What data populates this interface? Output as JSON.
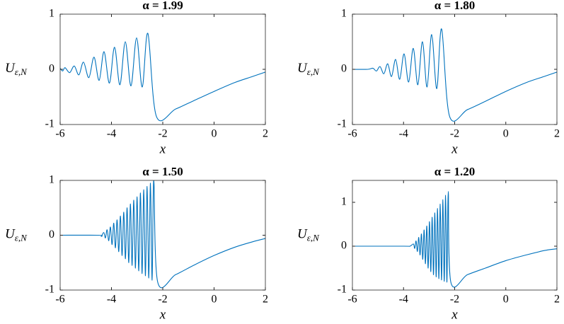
{
  "chart_data": [
    {
      "type": "line",
      "title": "α = 1.99",
      "xlabel": "x",
      "ylabel": "U",
      "ylabel_sub": "ε,N",
      "color": "#0072bd",
      "xlim": [
        -6,
        2
      ],
      "ylim": [
        -1,
        1
      ],
      "xticks": [
        -6,
        -4,
        -2,
        0,
        2
      ],
      "yticks": [
        -1,
        0,
        1
      ],
      "x": [
        -6,
        -5.9,
        -5.81,
        -5.63,
        -5.45,
        -5.27,
        -5.09,
        -4.88,
        -4.68,
        -4.48,
        -4.29,
        -4.08,
        -3.88,
        -3.67,
        -3.46,
        -3.24,
        -3.02,
        -2.8,
        -2.58,
        -2.25,
        -1.5,
        -0.8,
        0,
        0.8,
        1.5,
        2
      ],
      "values": [
        0.02,
        -0.03,
        0.03,
        -0.06,
        0.06,
        -0.1,
        0.13,
        -0.15,
        0.22,
        -0.2,
        0.32,
        -0.25,
        0.4,
        -0.28,
        0.5,
        -0.3,
        0.57,
        -0.32,
        0.65,
        -0.85,
        -0.72,
        -0.57,
        -0.4,
        -0.24,
        -0.13,
        -0.05
      ]
    },
    {
      "type": "line",
      "title": "α = 1.80",
      "xlabel": "x",
      "ylabel": "U",
      "ylabel_sub": "ε,N",
      "color": "#0072bd",
      "xlim": [
        -6,
        2
      ],
      "ylim": [
        -1,
        1
      ],
      "xticks": [
        -6,
        -4,
        -2,
        0,
        2
      ],
      "yticks": [
        -1,
        0,
        1
      ],
      "x": [
        -6,
        -5.4,
        -5.2,
        -5.06,
        -4.92,
        -4.77,
        -4.62,
        -4.47,
        -4.31,
        -4.15,
        -3.98,
        -3.8,
        -3.62,
        -3.44,
        -3.26,
        -3.08,
        -2.9,
        -2.7,
        -2.51,
        -2.2,
        -1.5,
        -0.8,
        0,
        0.8,
        1.5,
        2
      ],
      "values": [
        0,
        0,
        0.02,
        -0.03,
        0.05,
        -0.08,
        0.1,
        -0.13,
        0.18,
        -0.18,
        0.28,
        -0.23,
        0.38,
        -0.28,
        0.5,
        -0.32,
        0.63,
        -0.35,
        0.73,
        -0.85,
        -0.73,
        -0.58,
        -0.4,
        -0.24,
        -0.13,
        -0.05
      ]
    },
    {
      "type": "line",
      "title": "α = 1.50",
      "xlabel": "x",
      "ylabel": "U",
      "ylabel_sub": "ε,N",
      "color": "#0072bd",
      "xlim": [
        -6,
        2
      ],
      "ylim": [
        -1,
        1
      ],
      "xticks": [
        -6,
        -4,
        -2,
        0,
        2
      ],
      "yticks": [
        -1,
        0,
        1
      ],
      "x": [
        -6,
        -4.5,
        -4.4,
        -4.3,
        -4.235,
        -4.17,
        -4.105,
        -4.04,
        -3.975,
        -3.91,
        -3.845,
        -3.78,
        -3.715,
        -3.65,
        -3.585,
        -3.52,
        -3.455,
        -3.39,
        -3.325,
        -3.26,
        -3.195,
        -3.13,
        -3.065,
        -3.0,
        -2.935,
        -2.87,
        -2.805,
        -2.74,
        -2.675,
        -2.61,
        -2.545,
        -2.48,
        -2.415,
        -2.35,
        -2.2,
        -1.5,
        -0.8,
        0,
        0.8,
        1.5,
        2
      ],
      "values": [
        0,
        0,
        -0.02,
        0.05,
        -0.05,
        0.1,
        -0.1,
        0.15,
        -0.17,
        0.22,
        -0.23,
        0.28,
        -0.3,
        0.35,
        -0.37,
        0.42,
        -0.43,
        0.5,
        -0.5,
        0.57,
        -0.55,
        0.64,
        -0.6,
        0.7,
        -0.65,
        0.77,
        -0.7,
        0.83,
        -0.74,
        0.89,
        -0.78,
        0.95,
        -0.82,
        1.0,
        -0.85,
        -0.72,
        -0.55,
        -0.37,
        -0.22,
        -0.12,
        -0.06
      ]
    },
    {
      "type": "line",
      "title": "α = 1.20",
      "xlabel": "x",
      "ylabel": "U",
      "ylabel_sub": "ε,N",
      "color": "#0072bd",
      "xlim": [
        -6,
        2
      ],
      "ylim": [
        -1,
        1.5
      ],
      "xticks": [
        -6,
        -4,
        -2,
        0,
        2
      ],
      "yticks": [
        -1,
        0,
        1
      ],
      "x": [
        -6,
        -4,
        -3.75,
        -3.615,
        -3.5625,
        -3.51,
        -3.4575,
        -3.405,
        -3.3525,
        -3.3,
        -3.2475,
        -3.195,
        -3.1425,
        -3.09,
        -3.0375,
        -2.985,
        -2.9325,
        -2.88,
        -2.8275,
        -2.775,
        -2.7225,
        -2.67,
        -2.6175,
        -2.565,
        -2.5125,
        -2.46,
        -2.4075,
        -2.355,
        -2.3025,
        -2.25,
        -2.15,
        -1.5,
        -0.8,
        0,
        0.8,
        1.5,
        2
      ],
      "values": [
        0,
        0,
        0,
        0.05,
        -0.05,
        0.12,
        -0.12,
        0.2,
        -0.2,
        0.28,
        -0.3,
        0.37,
        -0.4,
        0.46,
        -0.5,
        0.56,
        -0.58,
        0.66,
        -0.65,
        0.76,
        -0.7,
        0.86,
        -0.74,
        0.96,
        -0.77,
        1.06,
        -0.8,
        1.16,
        -0.82,
        1.25,
        -0.82,
        -0.65,
        -0.5,
        -0.33,
        -0.2,
        -0.1,
        -0.06
      ]
    }
  ]
}
